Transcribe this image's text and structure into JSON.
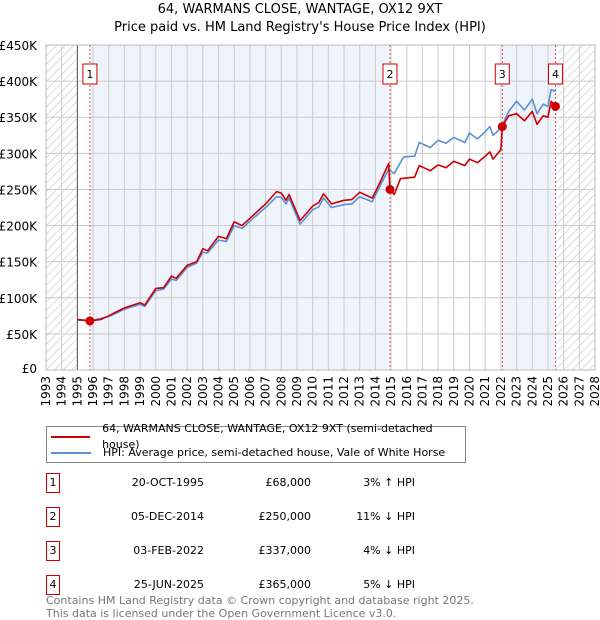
{
  "title": "64, WARMANS CLOSE, WANTAGE, OX12 9XT",
  "subtitle": "Price paid vs. HM Land Registry's House Price Index (HPI)",
  "colors": {
    "property": "#cc0000",
    "hpi": "#5b8fd6",
    "shade": "#eef3fc",
    "grid": "#cccccc"
  },
  "chart_data": {
    "type": "line",
    "title": "64, WARMANS CLOSE, WANTAGE, OX12 9XT",
    "subtitle": "Price paid vs. HM Land Registry's House Price Index (HPI)",
    "xlim": [
      1993,
      2028
    ],
    "ylim": [
      0,
      450000
    ],
    "x_ticks": [
      "1993",
      "1994",
      "1995",
      "1996",
      "1997",
      "1998",
      "1999",
      "2000",
      "2001",
      "2002",
      "2003",
      "2004",
      "2005",
      "2006",
      "2007",
      "2008",
      "2009",
      "2010",
      "2011",
      "2012",
      "2013",
      "2014",
      "2015",
      "2016",
      "2017",
      "2018",
      "2019",
      "2020",
      "2021",
      "2022",
      "2023",
      "2024",
      "2025",
      "2026",
      "2027",
      "2028"
    ],
    "y_ticks": [
      {
        "v": 0,
        "label": "£0"
      },
      {
        "v": 50000,
        "label": "£50K"
      },
      {
        "v": 100000,
        "label": "£100K"
      },
      {
        "v": 150000,
        "label": "£150K"
      },
      {
        "v": 200000,
        "label": "£200K"
      },
      {
        "v": 250000,
        "label": "£250K"
      },
      {
        "v": 300000,
        "label": "£300K"
      },
      {
        "v": 350000,
        "label": "£350K"
      },
      {
        "v": 400000,
        "label": "£400K"
      },
      {
        "v": 450000,
        "label": "£450K"
      }
    ],
    "grid": true,
    "data_range": [
      1995,
      2025.5
    ],
    "series": [
      {
        "name": "64, WARMANS CLOSE, WANTAGE, OX12 9XT (semi-detached house)",
        "color": "#cc0000",
        "points": [
          [
            1995,
            70
          ],
          [
            1995.8,
            68
          ],
          [
            1996.5,
            70
          ],
          [
            1997,
            75
          ],
          [
            1998,
            86
          ],
          [
            1999,
            93
          ],
          [
            1999.3,
            90
          ],
          [
            2000,
            113
          ],
          [
            2000.5,
            114
          ],
          [
            2001,
            130
          ],
          [
            2001.3,
            127
          ],
          [
            2002,
            145
          ],
          [
            2002.6,
            150
          ],
          [
            2003,
            168
          ],
          [
            2003.3,
            165
          ],
          [
            2004,
            185
          ],
          [
            2004.5,
            182
          ],
          [
            2005,
            205
          ],
          [
            2005.5,
            200
          ],
          [
            2006,
            210
          ],
          [
            2007,
            230
          ],
          [
            2007.7,
            247
          ],
          [
            2008,
            245
          ],
          [
            2008.3,
            235
          ],
          [
            2008.5,
            243
          ],
          [
            2009.2,
            207
          ],
          [
            2010,
            227
          ],
          [
            2010.4,
            232
          ],
          [
            2010.7,
            244
          ],
          [
            2011.2,
            230
          ],
          [
            2012,
            235
          ],
          [
            2012.5,
            236
          ],
          [
            2013,
            246
          ],
          [
            2013.8,
            238
          ],
          [
            2014.3,
            260
          ],
          [
            2014.85,
            286
          ],
          [
            2014.93,
            250
          ],
          [
            2015.2,
            243
          ],
          [
            2015.6,
            265
          ],
          [
            2016.5,
            267
          ],
          [
            2016.8,
            283
          ],
          [
            2017.5,
            276
          ],
          [
            2018,
            284
          ],
          [
            2018.5,
            280
          ],
          [
            2019,
            289
          ],
          [
            2019.7,
            283
          ],
          [
            2020,
            292
          ],
          [
            2020.5,
            287
          ],
          [
            2021,
            296
          ],
          [
            2021.3,
            302
          ],
          [
            2021.5,
            292
          ],
          [
            2022,
            305
          ],
          [
            2022.09,
            337
          ],
          [
            2022.5,
            352
          ],
          [
            2023,
            355
          ],
          [
            2023.5,
            345
          ],
          [
            2024,
            358
          ],
          [
            2024.3,
            340
          ],
          [
            2024.7,
            352
          ],
          [
            2025,
            350
          ],
          [
            2025.2,
            372
          ],
          [
            2025.48,
            365
          ]
        ]
      },
      {
        "name": "HPI: Average price, semi-detached house, Vale of White Horse",
        "color": "#5b8fd6",
        "points": [
          [
            1995,
            69
          ],
          [
            1996,
            69
          ],
          [
            1997,
            74
          ],
          [
            1998,
            84
          ],
          [
            1999,
            91
          ],
          [
            1999.3,
            88
          ],
          [
            2000,
            110
          ],
          [
            2000.5,
            112
          ],
          [
            2001,
            126
          ],
          [
            2001.3,
            124
          ],
          [
            2002,
            142
          ],
          [
            2002.6,
            148
          ],
          [
            2003,
            163
          ],
          [
            2003.3,
            162
          ],
          [
            2004,
            180
          ],
          [
            2004.5,
            178
          ],
          [
            2005,
            200
          ],
          [
            2005.5,
            196
          ],
          [
            2006,
            206
          ],
          [
            2007,
            225
          ],
          [
            2007.7,
            240
          ],
          [
            2008,
            239
          ],
          [
            2008.3,
            230
          ],
          [
            2008.5,
            238
          ],
          [
            2009.2,
            202
          ],
          [
            2010,
            222
          ],
          [
            2010.4,
            226
          ],
          [
            2010.7,
            238
          ],
          [
            2011.2,
            225
          ],
          [
            2012,
            229
          ],
          [
            2012.5,
            230
          ],
          [
            2013,
            240
          ],
          [
            2013.8,
            233
          ],
          [
            2014.3,
            255
          ],
          [
            2014.85,
            278
          ],
          [
            2015.2,
            272
          ],
          [
            2015.8,
            295
          ],
          [
            2016.5,
            296
          ],
          [
            2016.8,
            315
          ],
          [
            2017.5,
            308
          ],
          [
            2018,
            318
          ],
          [
            2018.5,
            314
          ],
          [
            2019,
            322
          ],
          [
            2019.7,
            315
          ],
          [
            2020,
            328
          ],
          [
            2020.5,
            320
          ],
          [
            2021,
            330
          ],
          [
            2021.3,
            337
          ],
          [
            2021.5,
            325
          ],
          [
            2022,
            335
          ],
          [
            2022.5,
            358
          ],
          [
            2023,
            372
          ],
          [
            2023.5,
            360
          ],
          [
            2024,
            375
          ],
          [
            2024.3,
            355
          ],
          [
            2024.7,
            368
          ],
          [
            2025,
            365
          ],
          [
            2025.2,
            388
          ],
          [
            2025.5,
            386
          ]
        ]
      }
    ],
    "sales": [
      {
        "n": "1",
        "x": 1995.8,
        "y": 68
      },
      {
        "n": "2",
        "x": 2014.93,
        "y": 250
      },
      {
        "n": "3",
        "x": 2022.09,
        "y": 337
      },
      {
        "n": "4",
        "x": 2025.48,
        "y": 365
      }
    ],
    "legend_placement": "below"
  },
  "legend": [
    {
      "label": "64, WARMANS CLOSE, WANTAGE, OX12 9XT (semi-detached house)"
    },
    {
      "label": "HPI: Average price, semi-detached house, Vale of White Horse"
    }
  ],
  "sales_table": [
    {
      "n": "1",
      "date": "20-OCT-1995",
      "price": "£68,000",
      "hpi": "3% ↑ HPI"
    },
    {
      "n": "2",
      "date": "05-DEC-2014",
      "price": "£250,000",
      "hpi": "11% ↓ HPI"
    },
    {
      "n": "3",
      "date": "03-FEB-2022",
      "price": "£337,000",
      "hpi": "4% ↓ HPI"
    },
    {
      "n": "4",
      "date": "25-JUN-2025",
      "price": "£365,000",
      "hpi": "5% ↓ HPI"
    }
  ],
  "footer": {
    "line1": "Contains HM Land Registry data © Crown copyright and database right 2025.",
    "line2": "This data is licensed under the Open Government Licence v3.0."
  }
}
